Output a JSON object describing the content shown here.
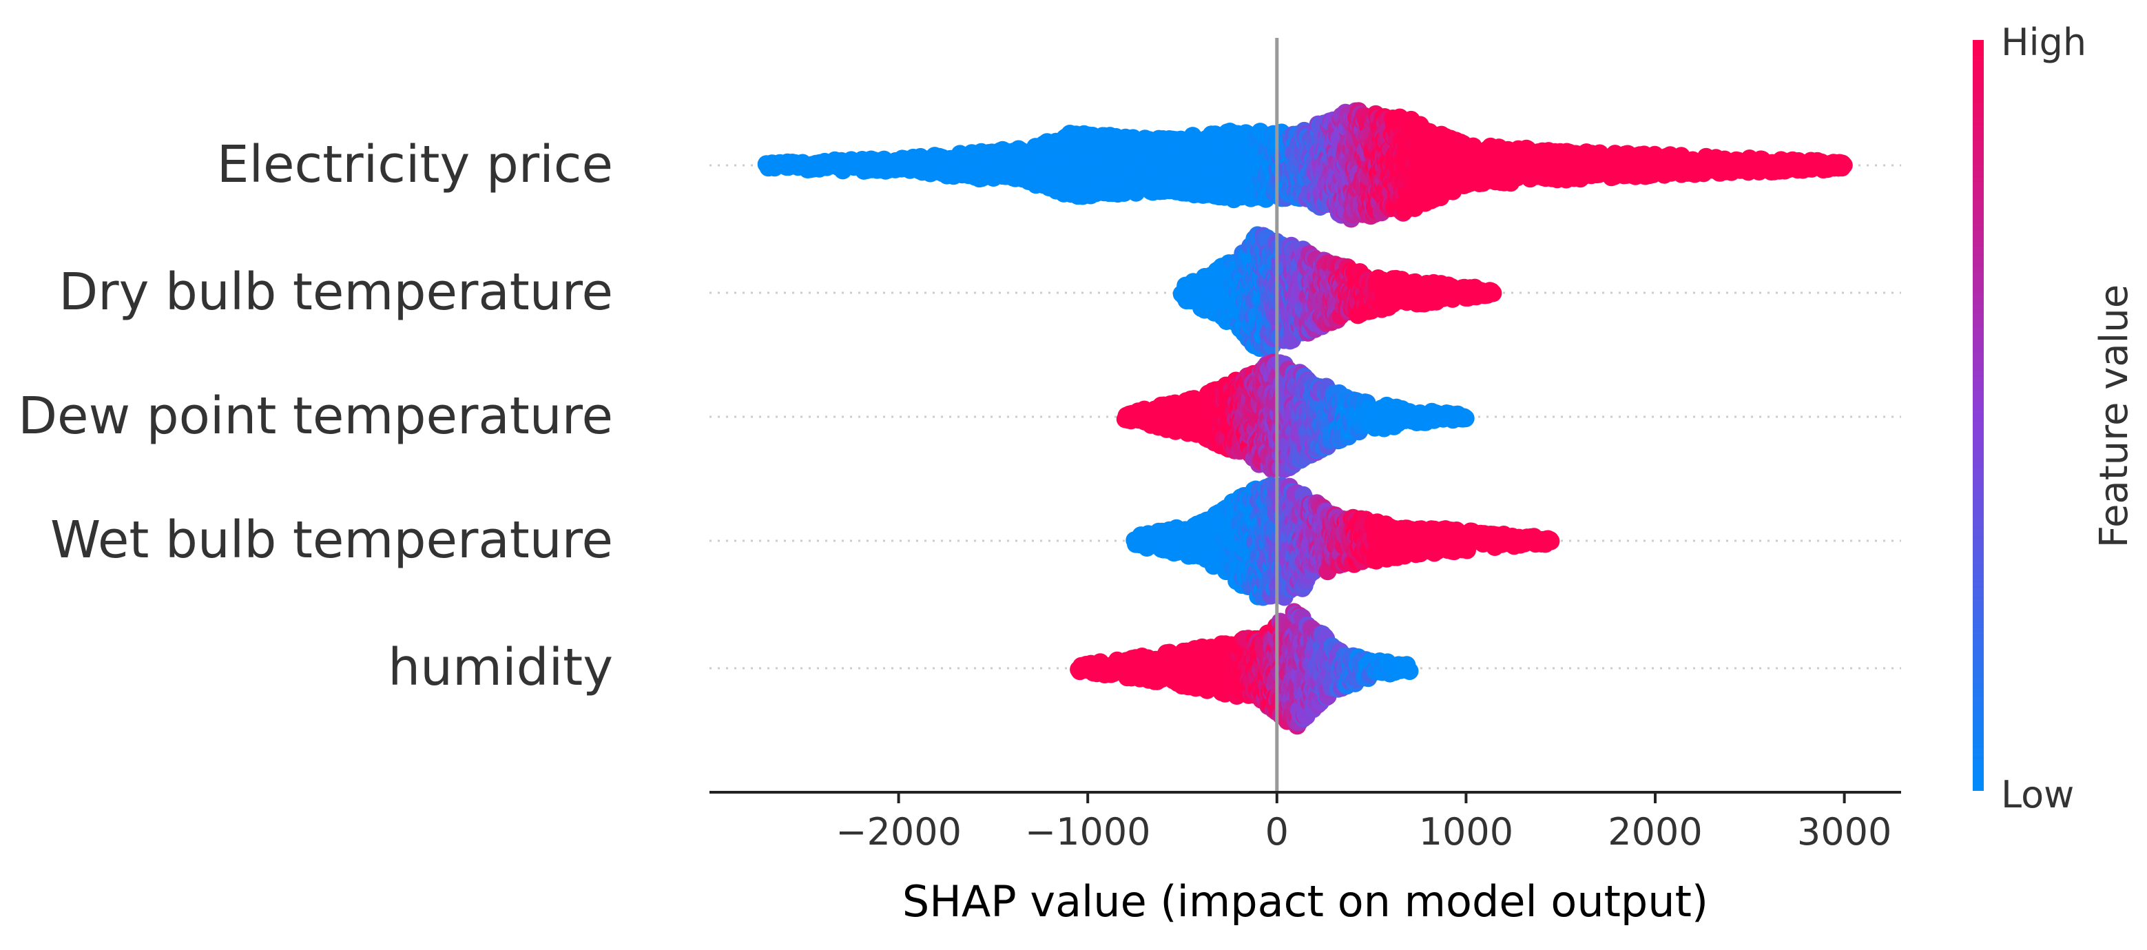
{
  "chart_data": {
    "type": "scatter",
    "subtype": "shap-beeswarm",
    "xlabel": "SHAP value (impact on model output)",
    "ylabel": "",
    "xlim": [
      -3000,
      3300
    ],
    "xticks": [
      -2000,
      -1000,
      0,
      1000,
      2000,
      3000
    ],
    "xtick_labels": [
      "−2000",
      "−1000",
      "0",
      "1000",
      "2000",
      "3000"
    ],
    "features": [
      {
        "name": "Electricity price",
        "min": -2700,
        "max": 3000,
        "profile": [
          [
            -2700,
            0.05
          ],
          [
            -2000,
            0.12
          ],
          [
            -1300,
            0.3
          ],
          [
            -1100,
            0.55
          ],
          [
            -600,
            0.45
          ],
          [
            -200,
            0.6
          ],
          [
            100,
            0.55
          ],
          [
            400,
            0.95
          ],
          [
            700,
            0.8
          ],
          [
            1000,
            0.35
          ],
          [
            1500,
            0.25
          ],
          [
            2500,
            0.12
          ],
          [
            3000,
            0.06
          ]
        ],
        "low_high_split": 300,
        "low_side": "left"
      },
      {
        "name": "Dry bulb temperature",
        "min": -500,
        "max": 1150,
        "profile": [
          [
            -500,
            0.1
          ],
          [
            -200,
            0.6
          ],
          [
            -100,
            1.0
          ],
          [
            100,
            0.8
          ],
          [
            300,
            0.5
          ],
          [
            600,
            0.25
          ],
          [
            1150,
            0.05
          ]
        ],
        "low_high_split": 150,
        "low_side": "left"
      },
      {
        "name": "Dew point temperature",
        "min": -800,
        "max": 1000,
        "profile": [
          [
            -800,
            0.05
          ],
          [
            -400,
            0.35
          ],
          [
            -100,
            0.8
          ],
          [
            0,
            1.0
          ],
          [
            150,
            0.7
          ],
          [
            400,
            0.3
          ],
          [
            700,
            0.12
          ],
          [
            1000,
            0.03
          ]
        ],
        "low_high_split": 80,
        "low_side": "right"
      },
      {
        "name": "Wet bulb temperature",
        "min": -750,
        "max": 1450,
        "profile": [
          [
            -750,
            0.08
          ],
          [
            -400,
            0.3
          ],
          [
            -100,
            0.95
          ],
          [
            50,
            1.0
          ],
          [
            300,
            0.45
          ],
          [
            700,
            0.25
          ],
          [
            1450,
            0.05
          ]
        ],
        "low_high_split": 150,
        "low_side": "left"
      },
      {
        "name": "humidity",
        "min": -1050,
        "max": 700,
        "profile": [
          [
            -1050,
            0.05
          ],
          [
            -500,
            0.3
          ],
          [
            -100,
            0.55
          ],
          [
            100,
            1.0
          ],
          [
            300,
            0.4
          ],
          [
            500,
            0.15
          ],
          [
            700,
            0.05
          ]
        ],
        "low_high_split": 200,
        "low_side": "right"
      }
    ],
    "colorbar": {
      "title": "Feature value",
      "high_label": "High",
      "low_label": "Low",
      "low_color": "#008bfb",
      "high_color": "#ff0052"
    }
  }
}
